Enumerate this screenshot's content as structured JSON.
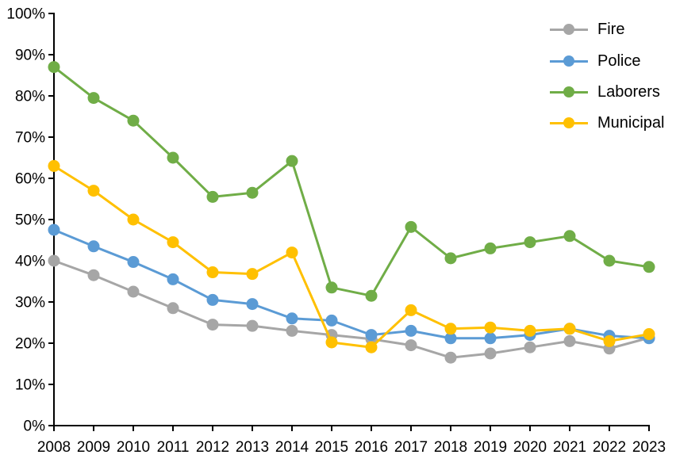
{
  "chart_data": {
    "type": "line",
    "title": "",
    "xlabel": "",
    "ylabel": "",
    "x": [
      2008,
      2009,
      2010,
      2011,
      2012,
      2013,
      2014,
      2015,
      2016,
      2017,
      2018,
      2019,
      2020,
      2021,
      2022,
      2023
    ],
    "series": [
      {
        "name": "Fire",
        "color": "#A6A6A6",
        "values": [
          40,
          36.5,
          32.5,
          28.5,
          24.5,
          24.2,
          23,
          22,
          21,
          19.5,
          16.5,
          17.5,
          19,
          20.5,
          18.7,
          21.3
        ]
      },
      {
        "name": "Police",
        "color": "#5B9BD5",
        "values": [
          47.5,
          43.5,
          39.7,
          35.5,
          30.5,
          29.5,
          26,
          25.5,
          22,
          23,
          21.2,
          21.2,
          22,
          23.5,
          21.8,
          21.2
        ]
      },
      {
        "name": "Laborers",
        "color": "#70AD47",
        "values": [
          87,
          79.5,
          74,
          65,
          55.5,
          56.5,
          64.2,
          33.5,
          31.5,
          48.2,
          40.6,
          43,
          44.5,
          46,
          40,
          38.5
        ]
      },
      {
        "name": "Municipal",
        "color": "#FFC000",
        "values": [
          63,
          57,
          50,
          44.5,
          37.2,
          36.8,
          42,
          20.2,
          19,
          28,
          23.5,
          23.8,
          23,
          23.5,
          20.5,
          22.2
        ]
      }
    ],
    "ylim": [
      0,
      100
    ],
    "ytick_step": 10,
    "ytick_labels": [
      "0%",
      "10%",
      "20%",
      "30%",
      "40%",
      "50%",
      "60%",
      "70%",
      "80%",
      "90%",
      "100%"
    ],
    "xtick_labels": [
      "2008",
      "2009",
      "2010",
      "2011",
      "2012",
      "2013",
      "2014",
      "2015",
      "2016",
      "2017",
      "2018",
      "2019",
      "2020",
      "2021",
      "2022",
      "2023"
    ],
    "grid": false,
    "legend_position": "top-right",
    "axis_color": "#000000",
    "text_color": "#000000",
    "background_color": "#FFFFFF"
  }
}
